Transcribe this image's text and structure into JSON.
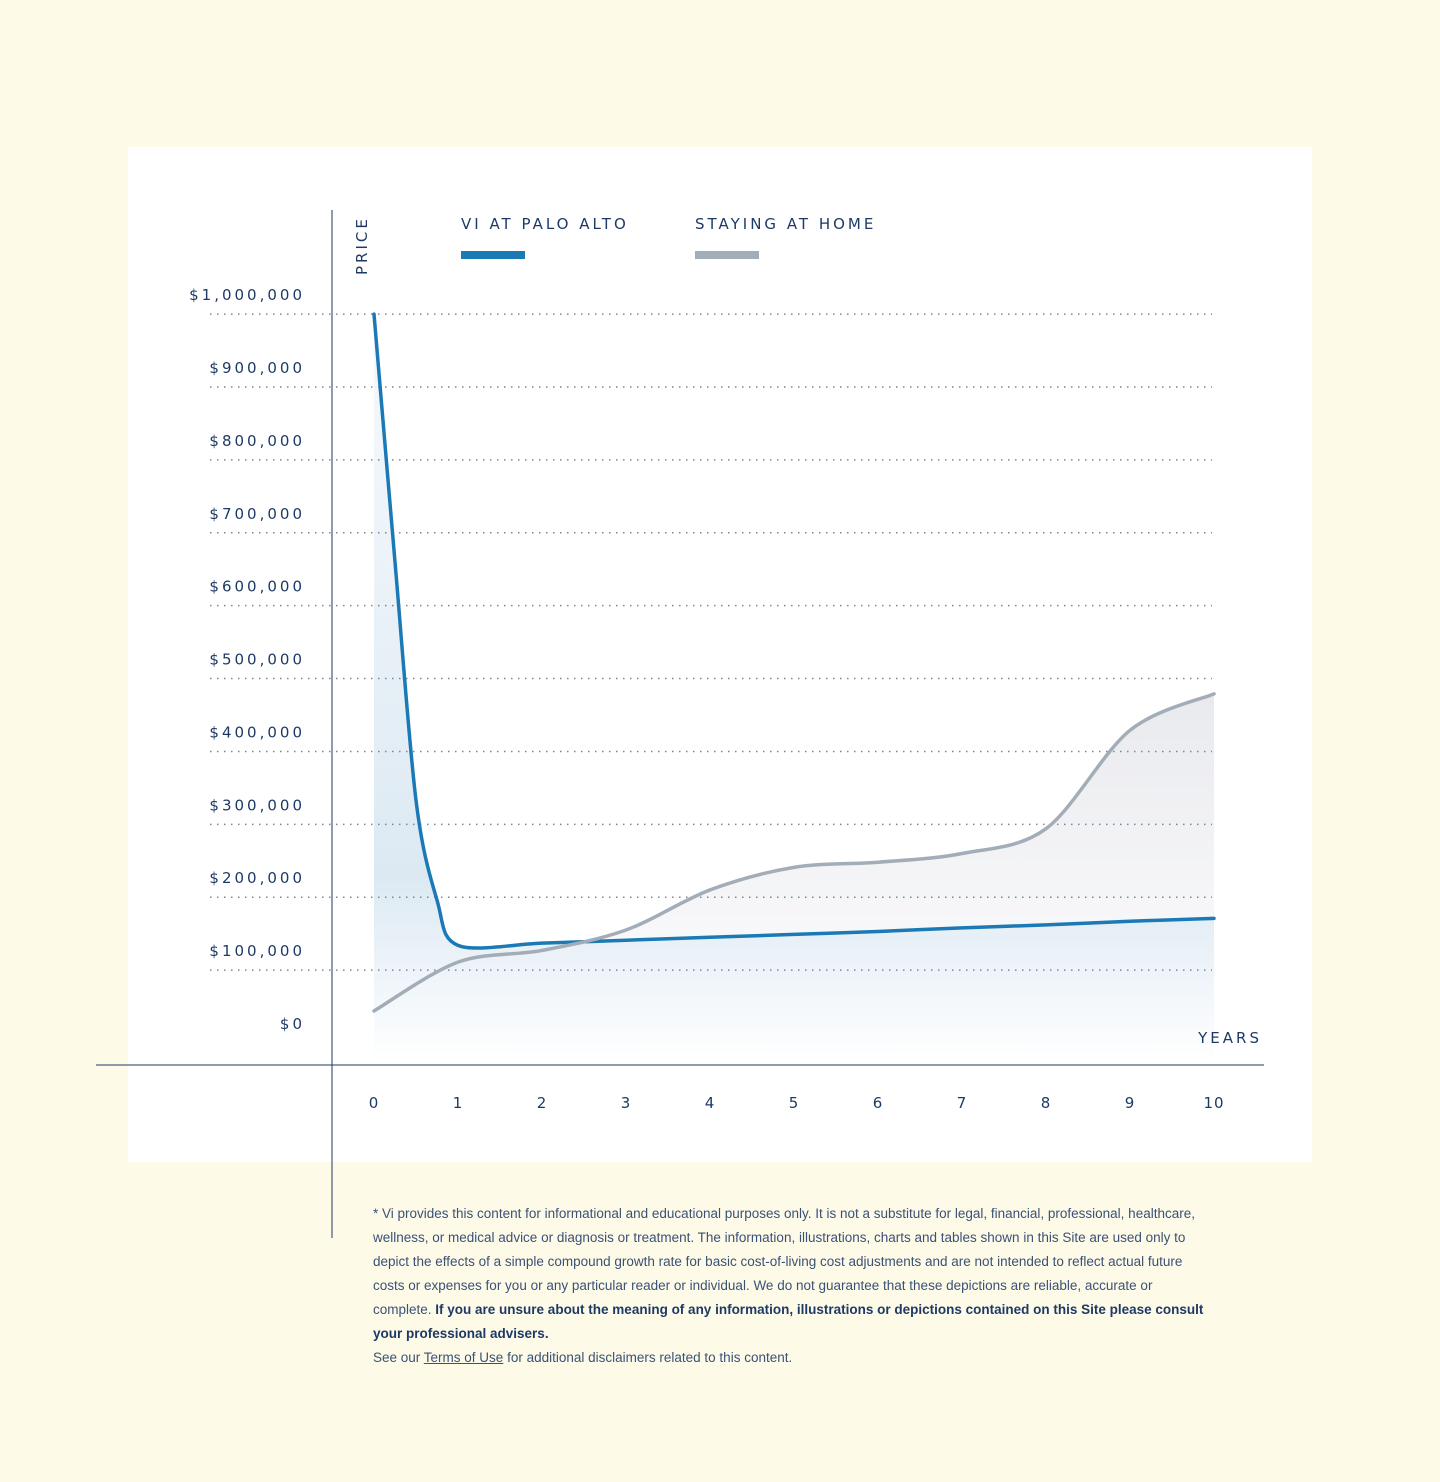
{
  "chart_data": {
    "type": "line",
    "xlabel": "YEARS",
    "ylabel": "PRICE",
    "x_ticks": [
      "0",
      "1",
      "2",
      "3",
      "4",
      "5",
      "6",
      "7",
      "8",
      "9",
      "10"
    ],
    "y_ticks": [
      "$0",
      "$100,000",
      "$200,000",
      "$300,000",
      "$400,000",
      "$500,000",
      "$600,000",
      "$700,000",
      "$800,000",
      "$900,000",
      "$1,000,000"
    ],
    "xlim": [
      0,
      10
    ],
    "ylim": [
      0,
      1000000
    ],
    "grid": "horizontal dotted",
    "legend_placement": "top",
    "series": [
      {
        "name": "VI AT PALO ALTO",
        "color": "#1b7ab5",
        "x": [
          0,
          0.25,
          0.5,
          0.75,
          1,
          2,
          3,
          4,
          5,
          6,
          7,
          8,
          9,
          10
        ],
        "y": [
          1000000,
          660000,
          333000,
          196000,
          134000,
          137000,
          141000,
          145000,
          149000,
          153000,
          158000,
          162000,
          167000,
          171000
        ]
      },
      {
        "name": "STAYING AT HOME",
        "color": "#a3adb7",
        "x": [
          0,
          1,
          2,
          3,
          4,
          5,
          6,
          7,
          8,
          9,
          10
        ],
        "y": [
          44000,
          111000,
          127000,
          155000,
          210000,
          241000,
          248000,
          260000,
          294000,
          429000,
          479000
        ]
      }
    ]
  },
  "footnote": {
    "text": "* Vi provides this content for informational and educational purposes only. It is not a substitute for legal, financial, professional, healthcare, wellness, or medical advice or diagnosis or treatment. The information, illustrations, charts and tables shown in this Site are used only to depict the effects of a simple compound growth rate for basic cost-of-living cost adjustments and are not intended to reflect actual future costs or expenses for you or any particular reader or individual. We do not guarantee that these depictions are reliable, accurate or complete. ",
    "bold": "If you are unsure about the meaning of any information, illustrations or depictions contained on this Site please consult your professional advisers.",
    "see_prefix": "See our ",
    "link": "Terms of Use",
    "see_suffix": " for additional disclaimers related to this content."
  }
}
